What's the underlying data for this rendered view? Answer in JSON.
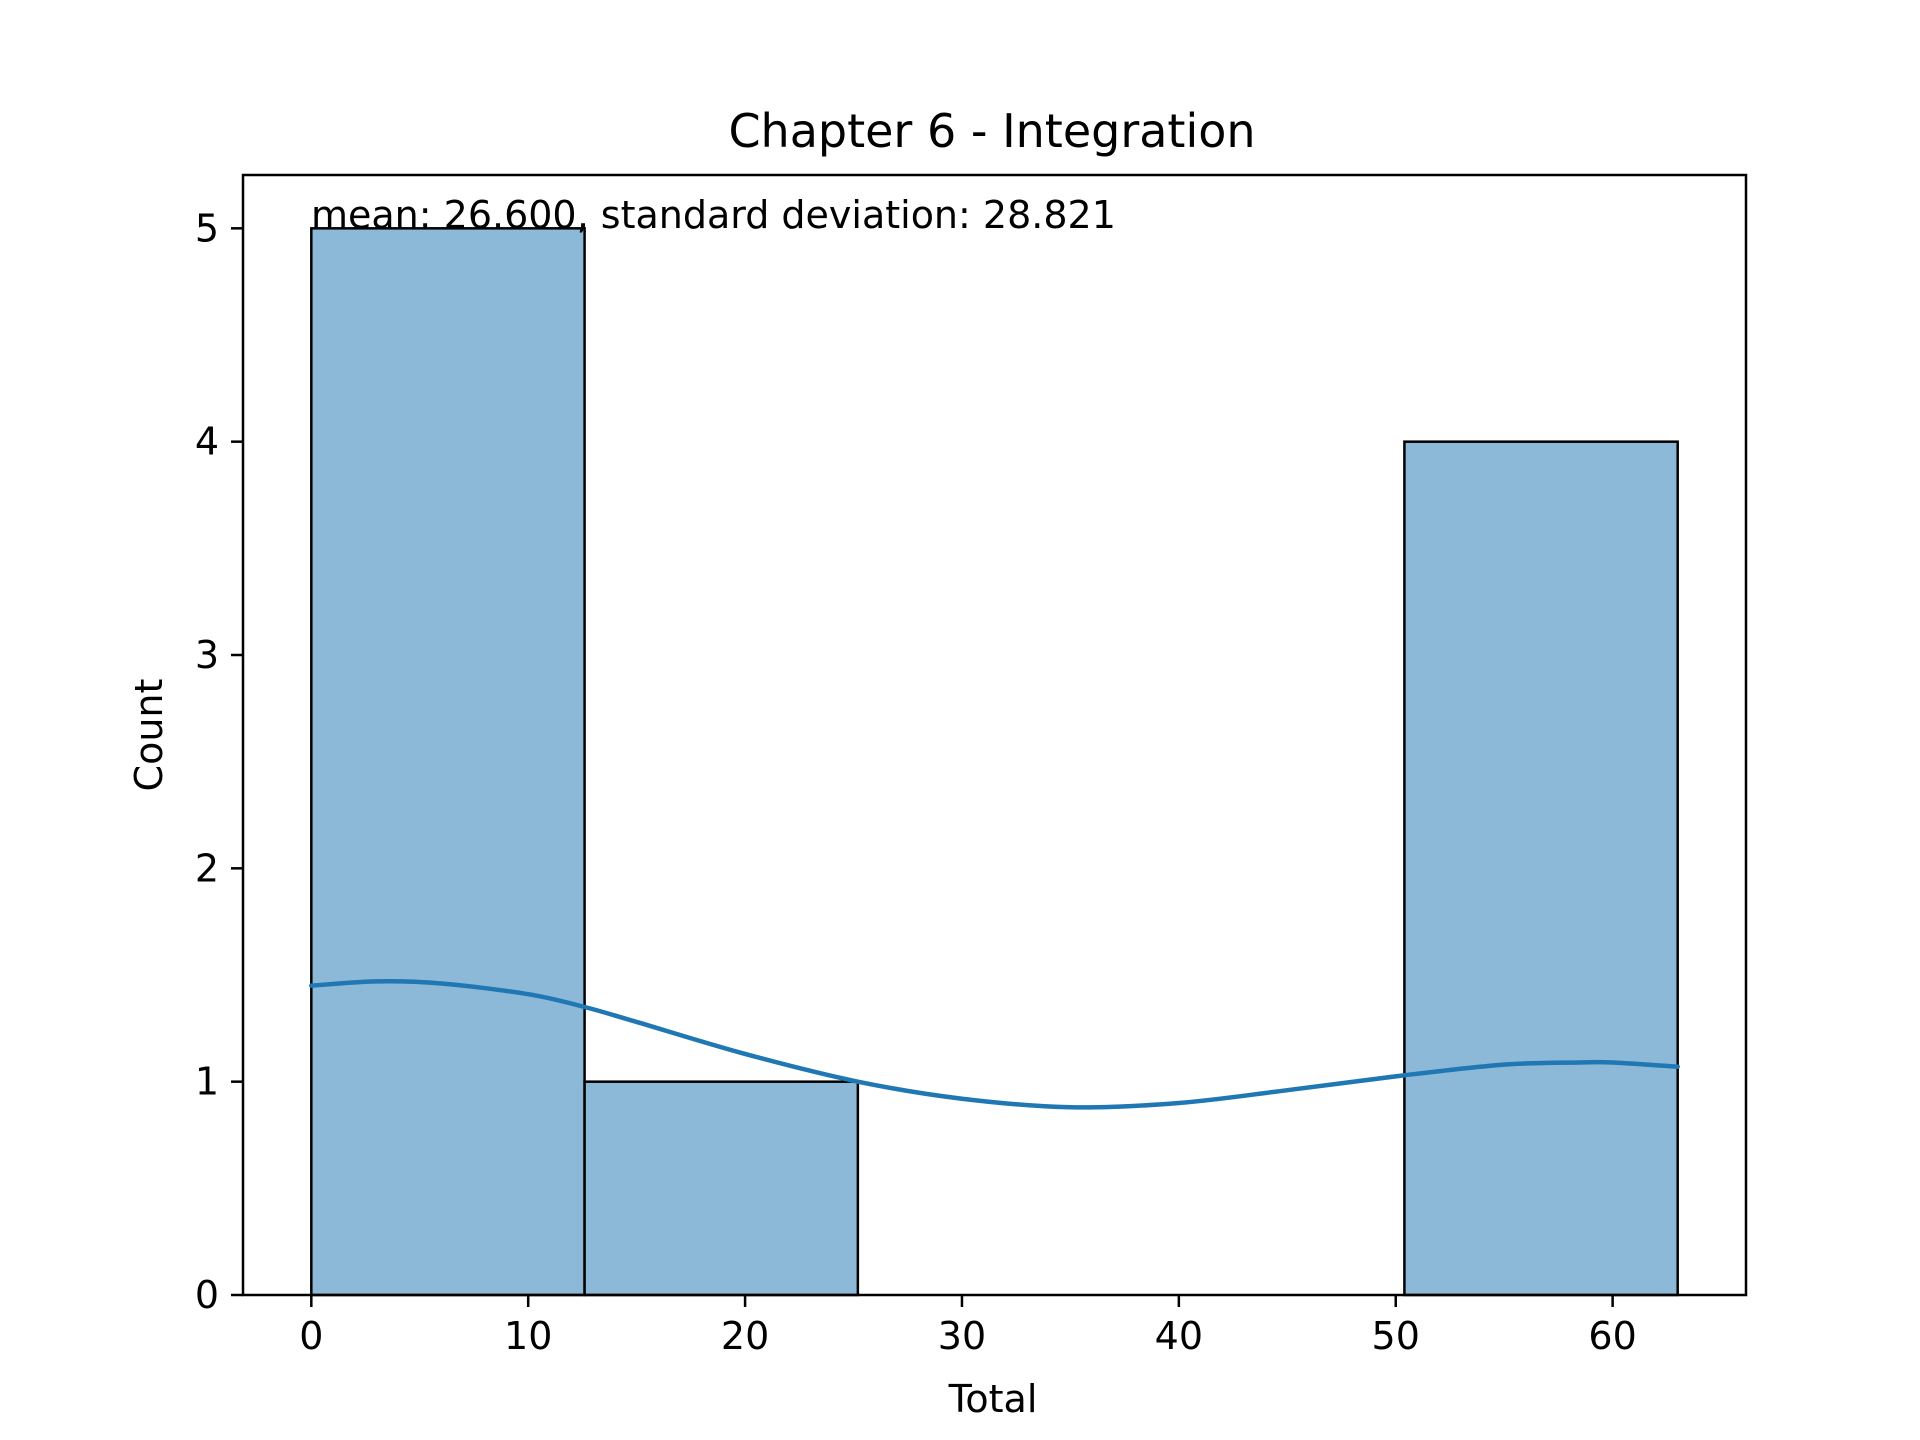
{
  "chart_data": {
    "type": "bar",
    "title": "Chapter 6 - Integration",
    "xlabel": "Total",
    "ylabel": "Count",
    "annotation": "mean: 26.600, standard deviation: 28.821",
    "xlim": [
      -3.15,
      66.15
    ],
    "ylim": [
      0,
      5.25
    ],
    "xticks": [
      0,
      10,
      20,
      30,
      40,
      50,
      60
    ],
    "yticks": [
      0,
      1,
      2,
      3,
      4,
      5
    ],
    "bins": [
      {
        "x0": 0,
        "x1": 12.6,
        "count": 5
      },
      {
        "x0": 12.6,
        "x1": 25.2,
        "count": 1
      },
      {
        "x0": 25.2,
        "x1": 37.8,
        "count": 0
      },
      {
        "x0": 37.8,
        "x1": 50.4,
        "count": 0
      },
      {
        "x0": 50.4,
        "x1": 63.0,
        "count": 4
      }
    ],
    "kde": {
      "name": "kde",
      "x": [
        0,
        3,
        6,
        10,
        12.6,
        15,
        20,
        25.2,
        30,
        35,
        40,
        45,
        50.4,
        55,
        58.5,
        60,
        63
      ],
      "y": [
        1.45,
        1.47,
        1.46,
        1.41,
        1.35,
        1.28,
        1.13,
        1.0,
        0.92,
        0.88,
        0.9,
        0.96,
        1.03,
        1.08,
        1.09,
        1.09,
        1.07
      ]
    },
    "grid": false,
    "bar_color": "#8db9d9",
    "line_color": "#1f77b4",
    "edge_color": "#000000"
  }
}
